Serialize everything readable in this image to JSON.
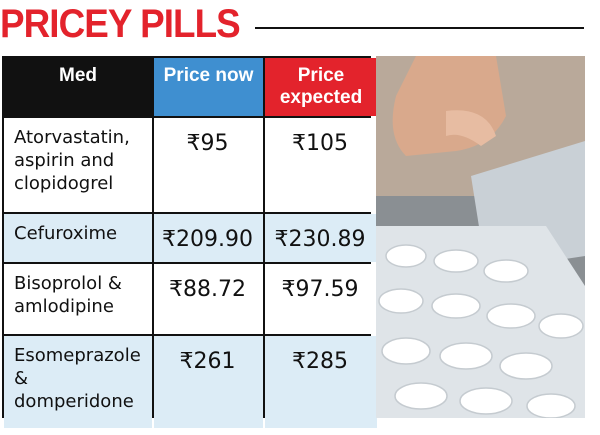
{
  "header": {
    "title": "PRICEY PILLS"
  },
  "table": {
    "columns": [
      "Med",
      "Price now",
      "Price expected"
    ],
    "rows": [
      [
        "Atorvastatin, aspirin and clopidogrel",
        "₹95",
        "₹105"
      ],
      [
        "Cefuroxime",
        "₹209.90",
        "₹230.89"
      ],
      [
        "Bisoprolol & amlodipine",
        "₹88.72",
        "₹97.59"
      ],
      [
        "Esomeprazole & domperidone",
        "₹261",
        "₹285"
      ]
    ]
  }
}
